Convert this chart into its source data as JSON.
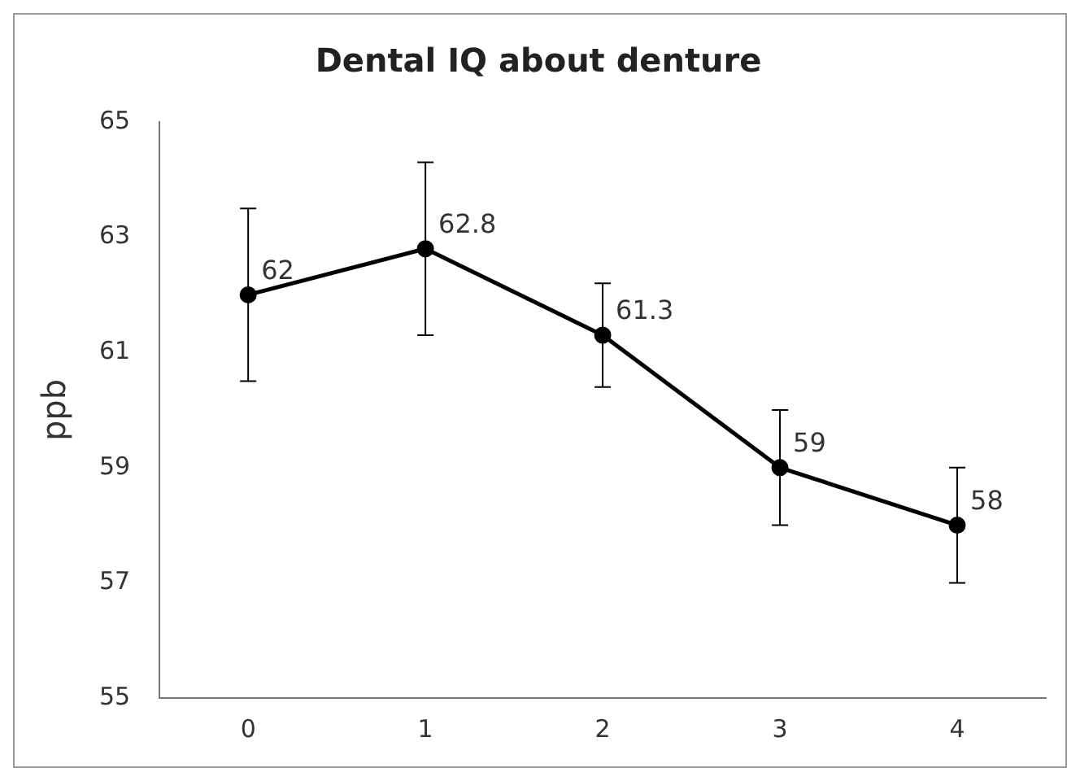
{
  "chart_data": {
    "type": "line",
    "title": "Dental IQ about denture",
    "ylabel": "ppb",
    "categories": [
      "0",
      "1",
      "2",
      "3",
      "4"
    ],
    "series": [
      {
        "color": "#000000",
        "values": [
          62,
          62.8,
          61.3,
          59,
          58
        ],
        "errors": [
          1.5,
          1.5,
          0.9,
          1,
          1
        ]
      }
    ],
    "ylim": [
      55,
      65
    ],
    "yticks": [
      55,
      57,
      59,
      61,
      63,
      65
    ],
    "grid": false,
    "legend": false,
    "marker": "circle",
    "line_style": "solid",
    "data_labels": true
  }
}
